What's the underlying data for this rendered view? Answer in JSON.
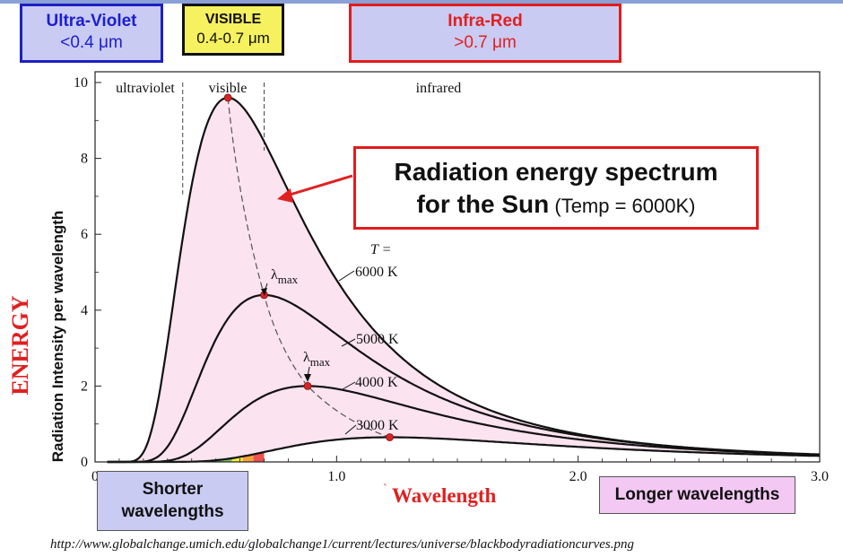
{
  "header": {
    "uv": {
      "title": "Ultra-Violet",
      "range": "<0.4 μm"
    },
    "visible": {
      "title": "VISIBLE",
      "range": "0.4-0.7 μm"
    },
    "ir": {
      "title": "Infra-Red",
      "range": ">0.7 μm"
    }
  },
  "title_box": {
    "line1": "Radiation energy spectrum",
    "line2_bold": "for the Sun",
    "line2_normal": " (Temp = 6000K)"
  },
  "energy_label": "ENERGY",
  "short_box": {
    "line1": "Shorter",
    "line2": "wavelengths"
  },
  "long_box": {
    "line1": "Longer wavelengths"
  },
  "xlabel_prefix": "`",
  "source_url": "http://www.globalchange.umich.edu/globalchange1/current/lectures/universe/blackbodyradiationcurves.png",
  "colors": {
    "accent_red": "#e02020",
    "blue_box": "#c9cbf2",
    "visible_yellow": "#f6f15e",
    "pink_fill": "#fbe3ef"
  },
  "chart_data": {
    "type": "line",
    "ylabel": "Radiation Intensity per wavelength",
    "xlabel": "Wavelength",
    "xlim": [
      0,
      3.0
    ],
    "ylim": [
      0,
      10
    ],
    "x_ticks": [
      {
        "value": 0,
        "label": "0"
      },
      {
        "value": 1.0,
        "label": "1.0"
      },
      {
        "value": 2.0,
        "label": "2.0"
      },
      {
        "value": 3.0,
        "label": "3.0"
      }
    ],
    "y_ticks": [
      {
        "value": 0,
        "label": "0"
      },
      {
        "value": 2,
        "label": "2"
      },
      {
        "value": 4,
        "label": "4"
      },
      {
        "value": 6,
        "label": "6"
      },
      {
        "value": 8,
        "label": "8"
      },
      {
        "value": 10,
        "label": "10"
      }
    ],
    "regions": [
      {
        "label": "ultraviolet",
        "from": 0,
        "to": 0.4
      },
      {
        "label": "visible",
        "from": 0.4,
        "to": 0.7
      },
      {
        "label": "infrared",
        "from": 0.7,
        "to": 3.0
      }
    ],
    "temperature_header": "T =",
    "series": [
      {
        "name": "6000 K",
        "temperature": 6000,
        "peak_x": 0.55,
        "peak_y": 9.6
      },
      {
        "name": "5000 K",
        "temperature": 5000,
        "peak_x": 0.7,
        "peak_y": 4.4
      },
      {
        "name": "4000 K",
        "temperature": 4000,
        "peak_x": 0.88,
        "peak_y": 2.0
      },
      {
        "name": "3000 K",
        "temperature": 3000,
        "peak_x": 1.22,
        "peak_y": 0.65
      }
    ],
    "lambda_max_label": "λ",
    "lambda_max_sub": "max",
    "spectrum_colors": [
      "#5b56a6",
      "#4a78c2",
      "#4ca85a",
      "#7cc24a",
      "#f4ec3c",
      "#f6a23a",
      "#f05050"
    ]
  }
}
